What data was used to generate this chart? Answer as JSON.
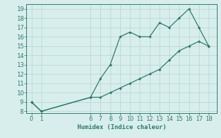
{
  "title": "",
  "xlabel": "Humidex (Indice chaleur)",
  "ylabel": "",
  "line1_x": [
    0,
    1,
    6,
    7,
    8,
    9,
    10,
    11,
    12,
    13,
    14,
    15,
    16,
    17,
    18
  ],
  "line1_y": [
    9,
    8,
    9.5,
    11.5,
    13,
    16,
    16.5,
    16,
    16,
    17.5,
    17,
    18,
    19,
    17,
    15
  ],
  "line2_x": [
    0,
    1,
    6,
    7,
    8,
    9,
    10,
    11,
    12,
    13,
    14,
    15,
    16,
    17,
    18
  ],
  "line2_y": [
    9,
    8,
    9.5,
    9.5,
    10,
    10.5,
    11,
    11.5,
    12,
    12.5,
    13.5,
    14.5,
    15,
    15.5,
    15
  ],
  "line_color": "#2a7a6f",
  "bg_color": "#d8eeec",
  "grid_color": "#b8d8d4",
  "xlim": [
    -0.5,
    18.8
  ],
  "ylim": [
    7.8,
    19.5
  ],
  "xticks": [
    0,
    1,
    6,
    7,
    8,
    9,
    10,
    11,
    12,
    13,
    14,
    15,
    16,
    17,
    18
  ],
  "yticks": [
    8,
    9,
    10,
    11,
    12,
    13,
    14,
    15,
    16,
    17,
    18,
    19
  ],
  "label_fontsize": 6.5,
  "tick_fontsize": 6.0,
  "marker_size": 2.2,
  "line_width": 0.9
}
